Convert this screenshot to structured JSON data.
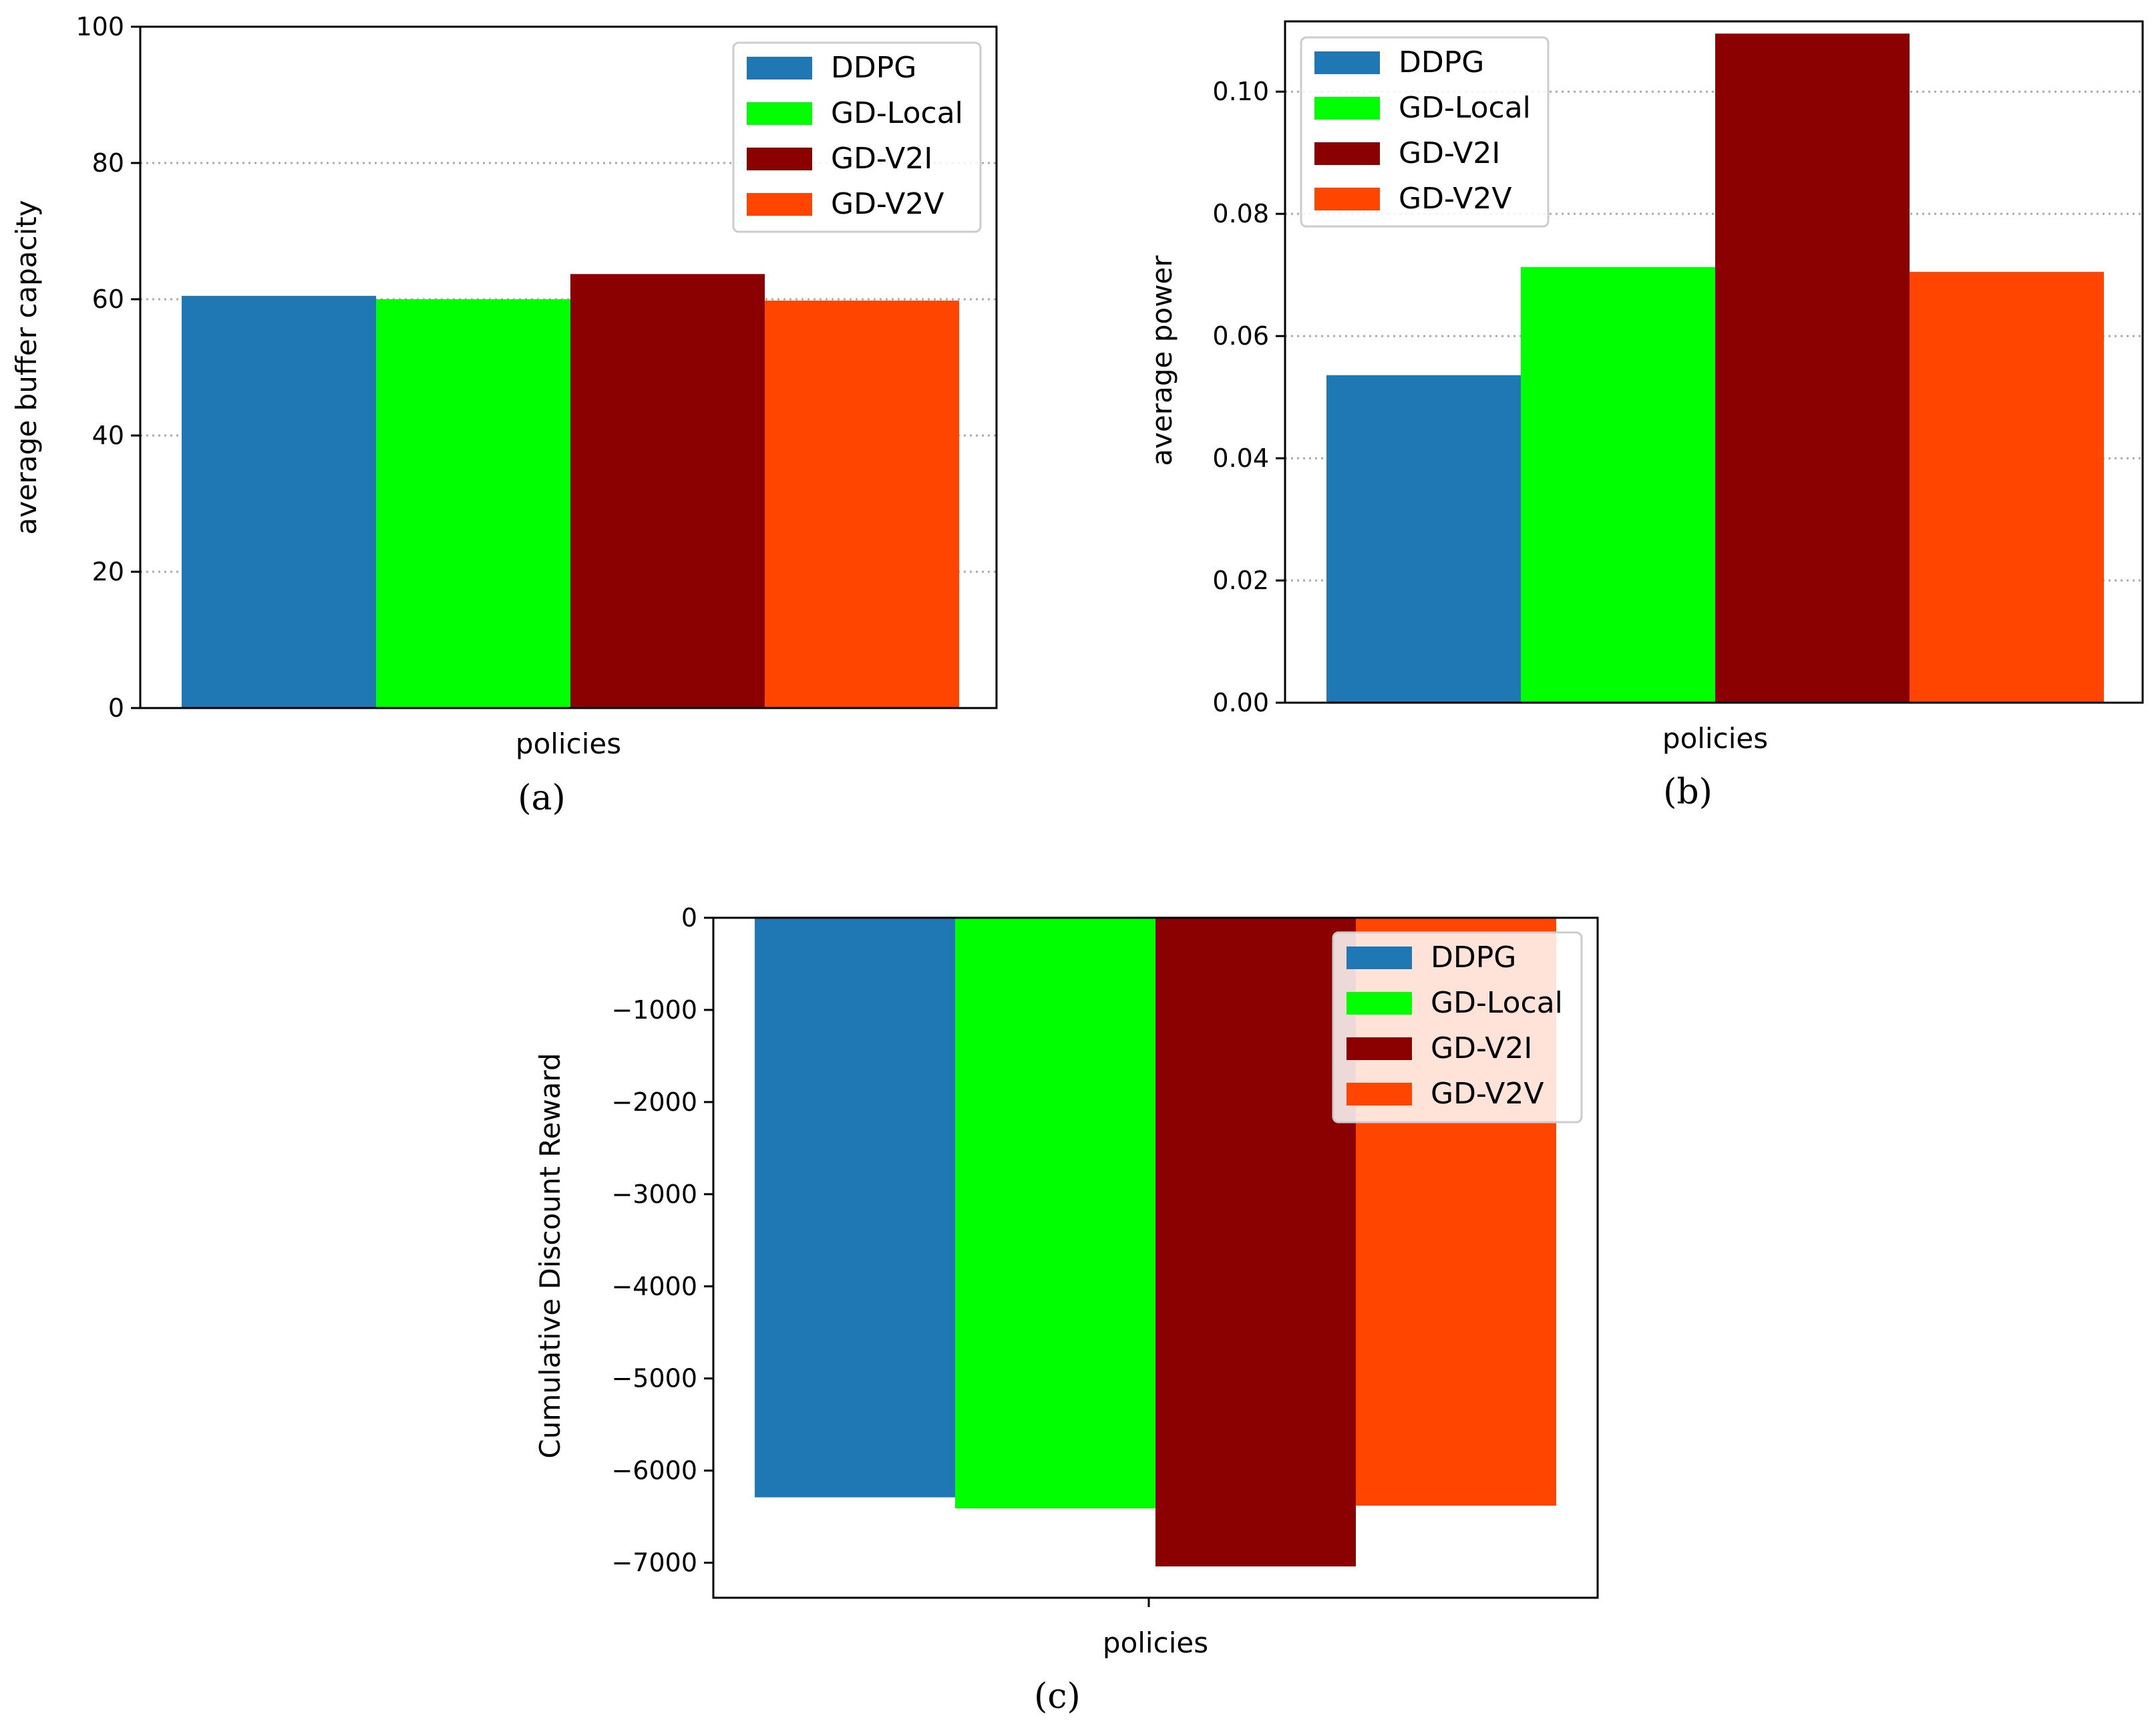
{
  "chart_data": [
    {
      "panel": "a",
      "type": "bar",
      "caption": "(a)",
      "xlabel": "policies",
      "ylabel": "average buffer capacity",
      "ylim": [
        0,
        100
      ],
      "yticks": [
        0,
        20,
        40,
        60,
        80,
        100
      ],
      "ytick_labels": [
        "0",
        "20",
        "40",
        "60",
        "80",
        "100"
      ],
      "grid": "y-dotted",
      "legend_position": "top-right",
      "series": [
        {
          "name": "DDPG",
          "value": 60.5,
          "color": "#1f77b4"
        },
        {
          "name": "GD-Local",
          "value": 60.0,
          "color": "#00ff00"
        },
        {
          "name": "GD-V2I",
          "value": 63.7,
          "color": "#8b0000"
        },
        {
          "name": "GD-V2V",
          "value": 59.8,
          "color": "#ff4500"
        }
      ]
    },
    {
      "panel": "b",
      "type": "bar",
      "caption": "(b)",
      "xlabel": "policies",
      "ylabel": "average power",
      "ylim": [
        0,
        0.1115
      ],
      "yticks": [
        0,
        0.02,
        0.04,
        0.06,
        0.08,
        0.1
      ],
      "ytick_labels": [
        "0.00",
        "0.02",
        "0.04",
        "0.06",
        "0.08",
        "0.10"
      ],
      "grid": "y-dotted",
      "legend_position": "top-left",
      "series": [
        {
          "name": "DDPG",
          "value": 0.0536,
          "color": "#1f77b4"
        },
        {
          "name": "GD-Local",
          "value": 0.0713,
          "color": "#00ff00"
        },
        {
          "name": "GD-V2I",
          "value": 0.1095,
          "color": "#8b0000"
        },
        {
          "name": "GD-V2V",
          "value": 0.0705,
          "color": "#ff4500"
        }
      ]
    },
    {
      "panel": "c",
      "type": "bar",
      "caption": "(c)",
      "xlabel": "policies",
      "ylabel": "Cumulative Discount Reward",
      "ylim": [
        -7380,
        0
      ],
      "yticks": [
        0,
        -1000,
        -2000,
        -3000,
        -4000,
        -5000,
        -6000,
        -7000
      ],
      "ytick_labels": [
        "0",
        "−1000",
        "−2000",
        "−3000",
        "−4000",
        "−5000",
        "−6000",
        "−7000"
      ],
      "grid": "none",
      "legend_position": "top-right",
      "series": [
        {
          "name": "DDPG",
          "value": -6290,
          "color": "#1f77b4"
        },
        {
          "name": "GD-Local",
          "value": -6410,
          "color": "#00ff00"
        },
        {
          "name": "GD-V2I",
          "value": -7040,
          "color": "#8b0000"
        },
        {
          "name": "GD-V2V",
          "value": -6380,
          "color": "#ff4500"
        }
      ]
    }
  ]
}
